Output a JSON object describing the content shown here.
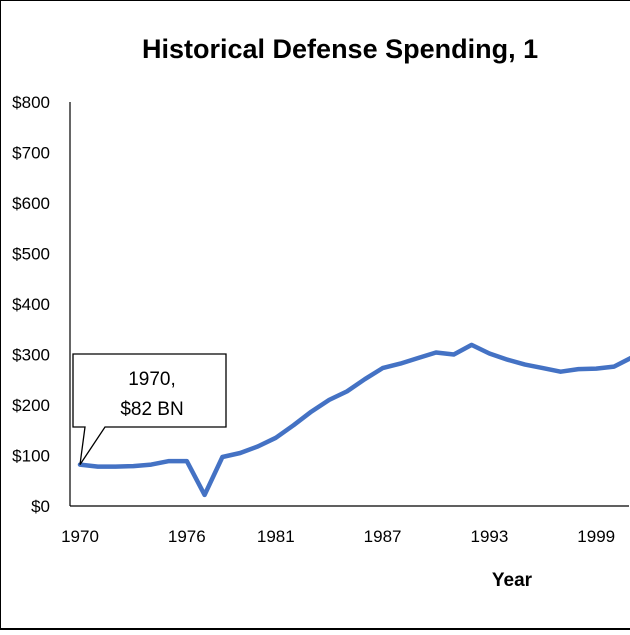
{
  "chart_data": {
    "type": "line",
    "title": "Historical Defense Spending, 1",
    "xlabel": "Year",
    "ylabel": "",
    "ylim": [
      0,
      800
    ],
    "xlim": [
      1970,
      2001.5
    ],
    "y_ticks": [
      0,
      100,
      200,
      300,
      400,
      500,
      600,
      700,
      800
    ],
    "y_tick_labels": [
      "$0",
      "$100",
      "$200",
      "$300",
      "$400",
      "$500",
      "$600",
      "$700",
      "$800"
    ],
    "x_ticks": [
      1970,
      1976,
      1981,
      1987,
      1993,
      1999
    ],
    "x_tick_labels": [
      "1970",
      "1976",
      "1981",
      "1987",
      "1993",
      "1999"
    ],
    "grid": false,
    "legend": "none",
    "series": [
      {
        "color": "#4472C4",
        "x": [
          1970,
          1971,
          1972,
          1973,
          1974,
          1975,
          1976,
          1977,
          1978,
          1979,
          1980,
          1981,
          1982,
          1983,
          1984,
          1985,
          1986,
          1987,
          1988,
          1989,
          1990,
          1991,
          1992,
          1993,
          1994,
          1995,
          1996,
          1997,
          1998,
          1999,
          2000,
          2001
        ],
        "y": [
          82,
          78,
          78,
          79,
          82,
          89,
          89,
          22,
          97,
          105,
          118,
          135,
          160,
          187,
          210,
          227,
          251,
          273,
          282,
          293,
          304,
          300,
          319,
          302,
          290,
          280,
          273,
          266,
          271,
          272,
          276,
          294
        ]
      }
    ],
    "annotations": [
      {
        "x": 1970,
        "y": 82,
        "line1": "1970,",
        "line2": "$82 BN"
      }
    ]
  }
}
